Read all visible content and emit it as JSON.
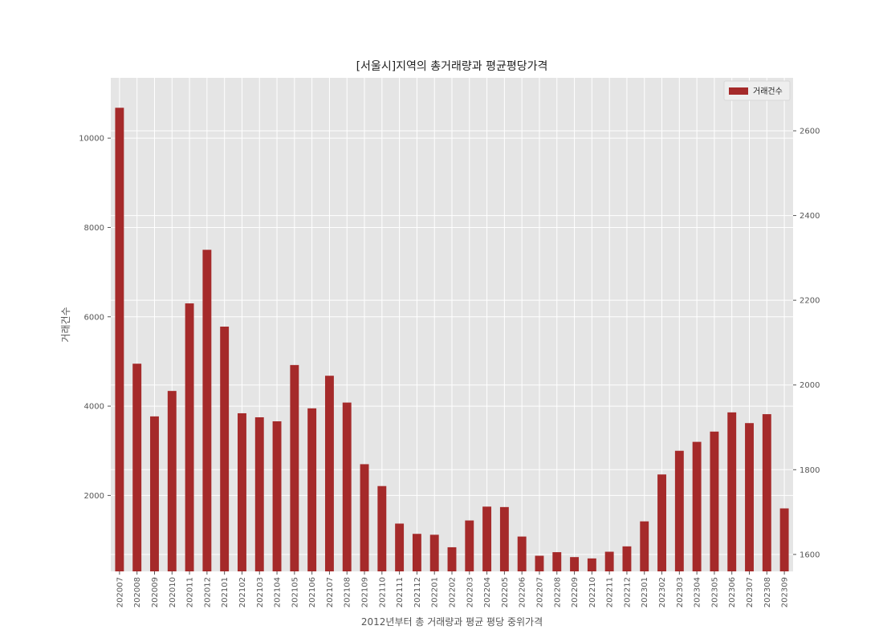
{
  "chart_data": {
    "type": "bar",
    "title": "[서울시]지역의 총거래량과 평균평당가격",
    "xlabel": "2012년부터 총 거래량과 평균 평당 중위가격",
    "ylabel": "거래건수",
    "categories": [
      "202007",
      "202008",
      "202009",
      "202010",
      "202011",
      "202012",
      "202101",
      "202102",
      "202103",
      "202104",
      "202105",
      "202106",
      "202107",
      "202108",
      "202109",
      "202110",
      "202111",
      "202112",
      "202201",
      "202202",
      "202203",
      "202204",
      "202205",
      "202206",
      "202207",
      "202208",
      "202209",
      "202210",
      "202211",
      "202212",
      "202301",
      "202302",
      "202303",
      "202304",
      "202305",
      "202306",
      "202307",
      "202308",
      "202309"
    ],
    "series": [
      {
        "name": "거래건수",
        "color": "#a52a2a",
        "values": [
          10680,
          4950,
          3770,
          4340,
          6300,
          7500,
          5780,
          3840,
          3750,
          3660,
          4920,
          3950,
          4680,
          4080,
          2700,
          2210,
          1370,
          1140,
          1120,
          840,
          1440,
          1750,
          1740,
          1080,
          650,
          730,
          620,
          590,
          740,
          860,
          1420,
          2470,
          3000,
          3200,
          3430,
          3860,
          3620,
          3820,
          1710
        ]
      }
    ],
    "ylim": [
      300,
      11350
    ],
    "yticks": [
      2000,
      4000,
      6000,
      8000,
      10000
    ],
    "y2lim": [
      1560,
      2725
    ],
    "y2ticks": [
      1600,
      1800,
      2000,
      2200,
      2400,
      2600
    ],
    "grid": true,
    "legend_position": "top-right",
    "style": "ggplot-gray-background"
  }
}
